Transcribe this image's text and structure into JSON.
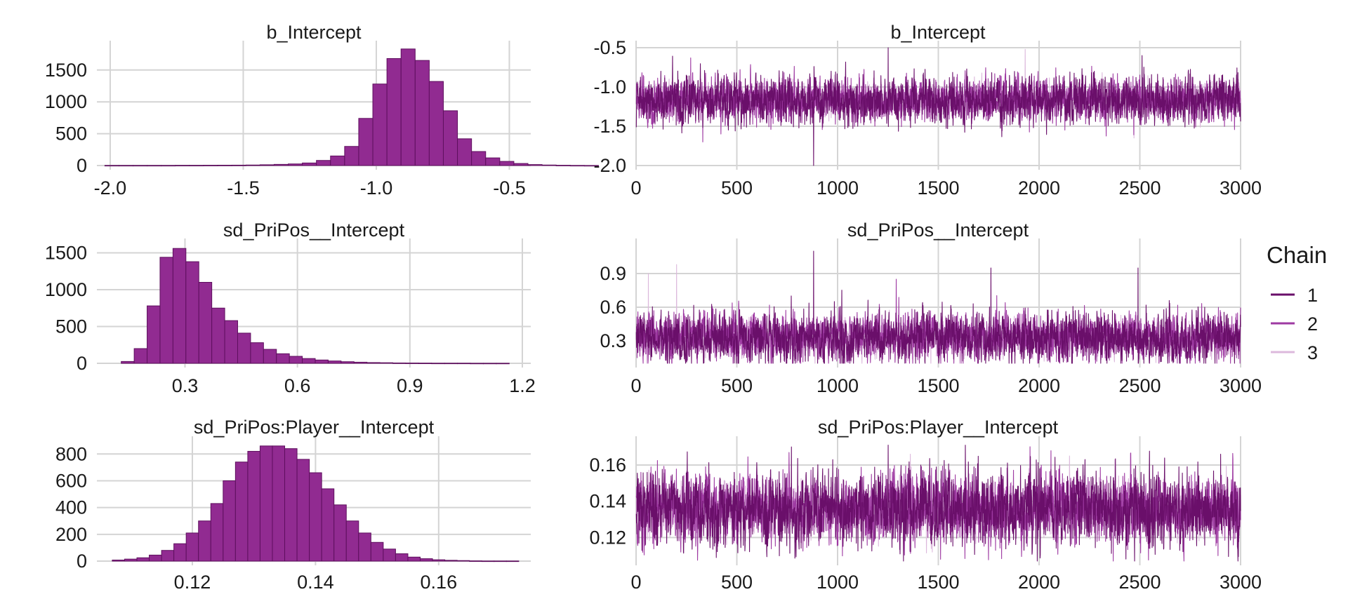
{
  "colors": {
    "hist_fill": "#912b91",
    "hist_stroke": "#5e0f5e",
    "chain1": "#6a0f6a",
    "chain2": "#9e3aa2",
    "chain3": "#dcb8dc",
    "grid": "#d4d4d4",
    "text": "#1a1a1a",
    "background": "#ffffff"
  },
  "legend": {
    "title": "Chain",
    "items": [
      {
        "label": "1",
        "color": "#6a0f6a"
      },
      {
        "label": "2",
        "color": "#9e3aa2"
      },
      {
        "label": "3",
        "color": "#dcb8dc"
      }
    ]
  },
  "chart_data": [
    {
      "type": "bar",
      "subtype": "histogram",
      "title": "b_Intercept",
      "xlim": [
        -2.05,
        -0.43
      ],
      "ylim": [
        0,
        1850
      ],
      "xticks": [
        -2.0,
        -1.5,
        -1.0,
        -0.5
      ],
      "xtick_labels": [
        "-2.0",
        "-1.5",
        "-1.0",
        "-0.5"
      ],
      "yticks": [
        0,
        500,
        1000,
        1500
      ],
      "ytick_labels": [
        "0",
        "500",
        "1000",
        "1500"
      ],
      "bin_start": -2.02,
      "bin_width": 0.053,
      "values": [
        2,
        2,
        2,
        2,
        2,
        3,
        3,
        4,
        5,
        6,
        8,
        12,
        18,
        25,
        40,
        80,
        150,
        300,
        740,
        1280,
        1680,
        1830,
        1650,
        1320,
        860,
        420,
        220,
        120,
        65,
        32,
        15,
        8,
        4,
        2,
        1
      ]
    },
    {
      "type": "line",
      "subtype": "trace",
      "title": "b_Intercept",
      "xlim": [
        0,
        3000
      ],
      "ylim": [
        -2.0,
        -0.5
      ],
      "xticks": [
        0,
        500,
        1000,
        1500,
        2000,
        2500,
        3000
      ],
      "xtick_labels": [
        "0",
        "500",
        "1000",
        "1500",
        "2000",
        "2500",
        "3000"
      ],
      "yticks": [
        -2.0,
        -1.5,
        -1.0,
        -0.5
      ],
      "ytick_labels": [
        "-2.0",
        "-1.5",
        "-1.0",
        "-0.5"
      ],
      "n_iterations": 3000,
      "series": [
        {
          "name": "1",
          "mean": -1.17,
          "sd": 0.14,
          "spikes": [
            [
              880,
              -2.0
            ],
            [
              1250,
              -0.46
            ],
            [
              2510,
              -0.6
            ]
          ]
        },
        {
          "name": "2",
          "mean": -1.16,
          "sd": 0.13,
          "spikes": [
            [
              270,
              -0.63
            ],
            [
              330,
              -1.7
            ]
          ]
        },
        {
          "name": "3",
          "mean": -1.15,
          "sd": 0.09,
          "spikes": [
            [
              1930,
              -0.52
            ],
            [
              2470,
              -1.65
            ]
          ]
        }
      ]
    },
    {
      "type": "bar",
      "subtype": "histogram",
      "title": "sd_PriPos__Intercept",
      "xlim": [
        0.065,
        1.215
      ],
      "ylim": [
        0,
        1600
      ],
      "xticks": [
        0.3,
        0.6,
        0.9,
        1.2
      ],
      "xtick_labels": [
        "0.3",
        "0.6",
        "0.9",
        "1.2"
      ],
      "yticks": [
        0,
        500,
        1000,
        1500
      ],
      "ytick_labels": [
        "0",
        "500",
        "1000",
        "1500"
      ],
      "bin_start": 0.13,
      "bin_width": 0.0345,
      "values": [
        25,
        200,
        780,
        1440,
        1560,
        1380,
        1100,
        750,
        580,
        410,
        280,
        190,
        130,
        95,
        65,
        45,
        32,
        22,
        15,
        10,
        8,
        5,
        4,
        3,
        2,
        2,
        2,
        1,
        1,
        1
      ]
    },
    {
      "type": "line",
      "subtype": "trace",
      "title": "sd_PriPos__Intercept",
      "xlim": [
        0,
        3000
      ],
      "ylim": [
        0.1,
        1.15
      ],
      "xticks": [
        0,
        500,
        1000,
        1500,
        2000,
        2500,
        3000
      ],
      "xtick_labels": [
        "0",
        "500",
        "1000",
        "1500",
        "2000",
        "2500",
        "3000"
      ],
      "yticks": [
        0.3,
        0.6,
        0.9
      ],
      "ytick_labels": [
        "0.3",
        "0.6",
        "0.9"
      ],
      "n_iterations": 3000,
      "series": [
        {
          "name": "1",
          "mean": 0.33,
          "sd": 0.1,
          "spikes": [
            [
              880,
              1.1
            ],
            [
              1760,
              0.95
            ],
            [
              2490,
              0.95
            ]
          ]
        },
        {
          "name": "2",
          "mean": 0.33,
          "sd": 0.1,
          "spikes": [
            [
              1290,
              0.85
            ]
          ]
        },
        {
          "name": "3",
          "mean": 0.32,
          "sd": 0.07,
          "spikes": [
            [
              60,
              0.9
            ],
            [
              200,
              0.98
            ]
          ]
        }
      ]
    },
    {
      "type": "bar",
      "subtype": "histogram",
      "title": "sd_PriPos:Player__Intercept",
      "xlim": [
        0.1045,
        0.1745
      ],
      "ylim": [
        0,
        880
      ],
      "xticks": [
        0.12,
        0.14,
        0.16
      ],
      "xtick_labels": [
        "0.12",
        "0.14",
        "0.16"
      ],
      "yticks": [
        0,
        200,
        400,
        600,
        800
      ],
      "ytick_labels": [
        "0",
        "200",
        "400",
        "600",
        "800"
      ],
      "bin_start": 0.107,
      "bin_width": 0.002,
      "values": [
        8,
        15,
        25,
        45,
        80,
        130,
        210,
        300,
        430,
        600,
        740,
        820,
        860,
        860,
        840,
        760,
        660,
        540,
        420,
        300,
        210,
        140,
        90,
        55,
        30,
        18,
        10,
        6,
        4,
        2,
        1,
        1,
        1
      ]
    },
    {
      "type": "line",
      "subtype": "trace",
      "title": "sd_PriPos:Player__Intercept",
      "xlim": [
        0,
        3000
      ],
      "ylim": [
        0.107,
        0.172
      ],
      "xticks": [
        0,
        500,
        1000,
        1500,
        2000,
        2500,
        3000
      ],
      "xtick_labels": [
        "0",
        "500",
        "1000",
        "1500",
        "2000",
        "2500",
        "3000"
      ],
      "yticks": [
        0.12,
        0.14,
        0.16
      ],
      "ytick_labels": [
        "0.12",
        "0.14",
        "0.16"
      ],
      "n_iterations": 3000,
      "series": [
        {
          "name": "1",
          "mean": 0.136,
          "sd": 0.0095,
          "spikes": [
            [
              770,
              0.17
            ],
            [
              1250,
              0.171
            ],
            [
              2900,
              0.166
            ]
          ]
        },
        {
          "name": "2",
          "mean": 0.136,
          "sd": 0.009,
          "spikes": [
            [
              1510,
              0.108
            ]
          ]
        },
        {
          "name": "3",
          "mean": 0.1355,
          "sd": 0.0065,
          "spikes": [
            [
              1360,
              0.166
            ],
            [
              2150,
              0.165
            ]
          ]
        }
      ]
    }
  ]
}
